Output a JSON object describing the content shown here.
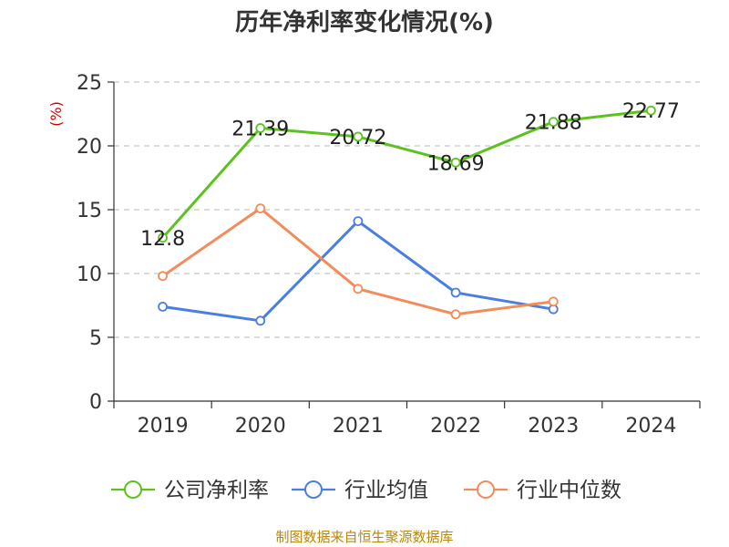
{
  "chart_data": {
    "type": "line",
    "title": "历年净利率变化情况(%)",
    "ylabel": "(%)",
    "xlabel": "",
    "categories": [
      "2019",
      "2020",
      "2021",
      "2022",
      "2023",
      "2024"
    ],
    "ylim": [
      0,
      25
    ],
    "yticks": [
      0,
      5,
      10,
      15,
      20,
      25
    ],
    "grid": "horizontal-dashed",
    "legend_position": "bottom",
    "series": [
      {
        "name": "公司净利率",
        "color": "#5cc21f",
        "values": [
          12.8,
          21.39,
          20.72,
          18.69,
          21.88,
          22.77
        ],
        "labels": [
          "12.8",
          "21.39",
          "20.72",
          "18.69",
          "21.88",
          "22.77"
        ]
      },
      {
        "name": "行业均值",
        "color": "#4a7fe0",
        "values": [
          7.4,
          6.3,
          14.1,
          8.5,
          7.2,
          null
        ]
      },
      {
        "name": "行业中位数",
        "color": "#f28c5a",
        "values": [
          9.8,
          15.1,
          8.8,
          6.8,
          7.8,
          null
        ]
      }
    ]
  },
  "source": "制图数据来自恒生聚源数据库"
}
